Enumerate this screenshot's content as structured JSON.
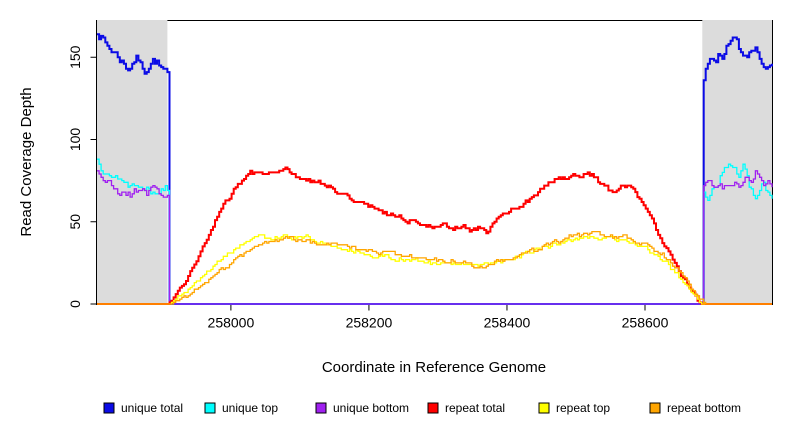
{
  "chart_data": {
    "type": "line",
    "title": "",
    "xlabel": "Coordinate in Reference Genome",
    "ylabel": "Read Coverage Depth",
    "xlim": [
      257806,
      258784
    ],
    "ylim": [
      0,
      172.3
    ],
    "xticks": [
      258000,
      258200,
      258400,
      258600
    ],
    "yticks": [
      0,
      50,
      100,
      150
    ],
    "grid": false,
    "legend_position": "bottom",
    "plot_background": "#ffffff",
    "shaded_regions": [
      {
        "label": "flank-left",
        "x0": 257806,
        "x1": 257908,
        "color": "#DCDCDC"
      },
      {
        "label": "flank-right",
        "x0": 258683,
        "x1": 258784,
        "color": "#DCDCDC"
      }
    ],
    "series": [
      {
        "name": "unique total",
        "color": "#0B0BE6",
        "width": 2,
        "noise": 2.3,
        "seed": 7,
        "points": [
          [
            257806,
            166
          ],
          [
            257814,
            161
          ],
          [
            257822,
            156
          ],
          [
            257830,
            153
          ],
          [
            257838,
            150
          ],
          [
            257846,
            145
          ],
          [
            257852,
            143
          ],
          [
            257858,
            147
          ],
          [
            257864,
            150
          ],
          [
            257870,
            144
          ],
          [
            257876,
            142
          ],
          [
            257882,
            146
          ],
          [
            257888,
            149
          ],
          [
            257894,
            146
          ],
          [
            257900,
            142
          ],
          [
            257906,
            140
          ],
          [
            257909,
            139
          ],
          [
            257910,
            0
          ],
          [
            258683,
            0
          ],
          [
            258684,
            135
          ],
          [
            258690,
            146
          ],
          [
            258696,
            150
          ],
          [
            258702,
            149
          ],
          [
            258708,
            153
          ],
          [
            258714,
            151
          ],
          [
            258720,
            156
          ],
          [
            258726,
            160
          ],
          [
            258731,
            164
          ],
          [
            258736,
            157
          ],
          [
            258741,
            151
          ],
          [
            258746,
            149
          ],
          [
            258752,
            154
          ],
          [
            258758,
            157
          ],
          [
            258764,
            153
          ],
          [
            258770,
            147
          ],
          [
            258776,
            142
          ],
          [
            258784,
            143
          ]
        ]
      },
      {
        "name": "unique top",
        "color": "#00FFFF",
        "width": 1.3,
        "noise": 2.6,
        "seed": 13,
        "points": [
          [
            257806,
            88
          ],
          [
            257814,
            82
          ],
          [
            257822,
            84
          ],
          [
            257830,
            78
          ],
          [
            257838,
            74
          ],
          [
            257846,
            76
          ],
          [
            257852,
            71
          ],
          [
            257860,
            74
          ],
          [
            257868,
            70
          ],
          [
            257876,
            72
          ],
          [
            257884,
            69
          ],
          [
            257892,
            71
          ],
          [
            257900,
            69
          ],
          [
            257906,
            71
          ],
          [
            257909,
            70
          ],
          [
            257910,
            0
          ],
          [
            258683,
            0
          ],
          [
            258684,
            70
          ],
          [
            258690,
            66
          ],
          [
            258698,
            70
          ],
          [
            258706,
            76
          ],
          [
            258714,
            81
          ],
          [
            258722,
            85
          ],
          [
            258730,
            82
          ],
          [
            258736,
            79
          ],
          [
            258742,
            83
          ],
          [
            258748,
            75
          ],
          [
            258754,
            68
          ],
          [
            258760,
            64
          ],
          [
            258766,
            68
          ],
          [
            258772,
            72
          ],
          [
            258778,
            68
          ],
          [
            258784,
            64
          ]
        ]
      },
      {
        "name": "unique bottom",
        "color": "#A020F0",
        "width": 1.3,
        "noise": 2.2,
        "seed": 21,
        "points": [
          [
            257806,
            81
          ],
          [
            257814,
            77
          ],
          [
            257822,
            73
          ],
          [
            257830,
            70
          ],
          [
            257838,
            67
          ],
          [
            257846,
            69
          ],
          [
            257854,
            66
          ],
          [
            257862,
            69
          ],
          [
            257870,
            71
          ],
          [
            257878,
            68
          ],
          [
            257886,
            70
          ],
          [
            257894,
            68
          ],
          [
            257902,
            66
          ],
          [
            257909,
            66
          ],
          [
            257910,
            0
          ],
          [
            258683,
            0
          ],
          [
            258684,
            72
          ],
          [
            258692,
            75
          ],
          [
            258700,
            71
          ],
          [
            258708,
            74
          ],
          [
            258716,
            70
          ],
          [
            258724,
            72
          ],
          [
            258732,
            76
          ],
          [
            258740,
            73
          ],
          [
            258748,
            78
          ],
          [
            258754,
            75
          ],
          [
            258760,
            81
          ],
          [
            258766,
            77
          ],
          [
            258772,
            73
          ],
          [
            258778,
            74
          ],
          [
            258784,
            70
          ]
        ]
      },
      {
        "name": "repeat total",
        "color": "#FF0000",
        "width": 2,
        "noise": 1.3,
        "seed": 3,
        "points": [
          [
            257806,
            0
          ],
          [
            257910,
            0
          ],
          [
            257922,
            6
          ],
          [
            257935,
            15
          ],
          [
            257948,
            25
          ],
          [
            257960,
            34
          ],
          [
            257972,
            45
          ],
          [
            257984,
            55
          ],
          [
            257996,
            64
          ],
          [
            258008,
            72
          ],
          [
            258018,
            76
          ],
          [
            258028,
            80
          ],
          [
            258042,
            79
          ],
          [
            258056,
            80
          ],
          [
            258068,
            78
          ],
          [
            258080,
            81
          ],
          [
            258092,
            77
          ],
          [
            258104,
            76
          ],
          [
            258118,
            75
          ],
          [
            258130,
            74
          ],
          [
            258145,
            71
          ],
          [
            258160,
            67
          ],
          [
            258175,
            64
          ],
          [
            258190,
            61
          ],
          [
            258205,
            59
          ],
          [
            258220,
            56
          ],
          [
            258235,
            54
          ],
          [
            258250,
            52
          ],
          [
            258265,
            50
          ],
          [
            258280,
            49
          ],
          [
            258295,
            48
          ],
          [
            258310,
            47
          ],
          [
            258322,
            46
          ],
          [
            258334,
            48
          ],
          [
            258346,
            45
          ],
          [
            258358,
            46
          ],
          [
            258366,
            47
          ],
          [
            258372,
            43
          ],
          [
            258380,
            49
          ],
          [
            258392,
            53
          ],
          [
            258404,
            56
          ],
          [
            258416,
            59
          ],
          [
            258428,
            62
          ],
          [
            258440,
            66
          ],
          [
            258452,
            70
          ],
          [
            258464,
            74
          ],
          [
            258476,
            77
          ],
          [
            258488,
            75
          ],
          [
            258500,
            78
          ],
          [
            258512,
            79
          ],
          [
            258524,
            78
          ],
          [
            258536,
            73
          ],
          [
            258548,
            69
          ],
          [
            258558,
            67
          ],
          [
            258568,
            72
          ],
          [
            258576,
            73
          ],
          [
            258586,
            68
          ],
          [
            258596,
            61
          ],
          [
            258606,
            53
          ],
          [
            258616,
            45
          ],
          [
            258626,
            37
          ],
          [
            258636,
            30
          ],
          [
            258646,
            23
          ],
          [
            258656,
            16
          ],
          [
            258666,
            9
          ],
          [
            258676,
            4
          ],
          [
            258683,
            0
          ],
          [
            258784,
            0
          ]
        ]
      },
      {
        "name": "repeat top",
        "color": "#FFFF00",
        "width": 1.3,
        "noise": 1.1,
        "seed": 5,
        "points": [
          [
            257806,
            0
          ],
          [
            257910,
            0
          ],
          [
            257928,
            5
          ],
          [
            257946,
            12
          ],
          [
            257964,
            19
          ],
          [
            257982,
            26
          ],
          [
            258000,
            32
          ],
          [
            258015,
            36
          ],
          [
            258030,
            39
          ],
          [
            258045,
            41
          ],
          [
            258060,
            40
          ],
          [
            258075,
            42
          ],
          [
            258090,
            40
          ],
          [
            258105,
            41
          ],
          [
            258120,
            39
          ],
          [
            258135,
            37
          ],
          [
            258150,
            35
          ],
          [
            258165,
            33
          ],
          [
            258180,
            32
          ],
          [
            258195,
            30
          ],
          [
            258215,
            29
          ],
          [
            258235,
            28
          ],
          [
            258255,
            27
          ],
          [
            258275,
            26
          ],
          [
            258295,
            25
          ],
          [
            258315,
            24
          ],
          [
            258335,
            25
          ],
          [
            258355,
            24
          ],
          [
            258375,
            25
          ],
          [
            258395,
            27
          ],
          [
            258415,
            29
          ],
          [
            258435,
            32
          ],
          [
            258455,
            35
          ],
          [
            258475,
            37
          ],
          [
            258495,
            39
          ],
          [
            258515,
            41
          ],
          [
            258535,
            40
          ],
          [
            258555,
            40
          ],
          [
            258575,
            38
          ],
          [
            258595,
            35
          ],
          [
            258615,
            30
          ],
          [
            258635,
            23
          ],
          [
            258650,
            16
          ],
          [
            258665,
            9
          ],
          [
            258676,
            4
          ],
          [
            258683,
            0
          ],
          [
            258784,
            0
          ]
        ]
      },
      {
        "name": "repeat bottom",
        "color": "#FFA500",
        "width": 1.3,
        "noise": 1.1,
        "seed": 9,
        "points": [
          [
            257806,
            0
          ],
          [
            257910,
            0
          ],
          [
            257932,
            4
          ],
          [
            257954,
            10
          ],
          [
            257976,
            17
          ],
          [
            257998,
            24
          ],
          [
            258018,
            30
          ],
          [
            258038,
            35
          ],
          [
            258058,
            38
          ],
          [
            258078,
            40
          ],
          [
            258098,
            39
          ],
          [
            258118,
            38
          ],
          [
            258138,
            37
          ],
          [
            258158,
            35
          ],
          [
            258178,
            34
          ],
          [
            258198,
            32
          ],
          [
            258218,
            31
          ],
          [
            258238,
            30
          ],
          [
            258258,
            29
          ],
          [
            258278,
            28
          ],
          [
            258298,
            27
          ],
          [
            258318,
            26
          ],
          [
            258338,
            25
          ],
          [
            258352,
            23
          ],
          [
            258366,
            22
          ],
          [
            258380,
            25
          ],
          [
            258394,
            27
          ],
          [
            258410,
            28
          ],
          [
            258426,
            31
          ],
          [
            258442,
            33
          ],
          [
            258458,
            36
          ],
          [
            258474,
            38
          ],
          [
            258490,
            41
          ],
          [
            258506,
            42
          ],
          [
            258522,
            43
          ],
          [
            258538,
            42
          ],
          [
            258554,
            41
          ],
          [
            258570,
            40
          ],
          [
            258586,
            38
          ],
          [
            258602,
            36
          ],
          [
            258618,
            32
          ],
          [
            258634,
            27
          ],
          [
            258648,
            21
          ],
          [
            258660,
            14
          ],
          [
            258670,
            8
          ],
          [
            258680,
            3
          ],
          [
            258686,
            0
          ],
          [
            258784,
            0
          ]
        ]
      }
    ]
  },
  "legend": {
    "items": [
      {
        "label": "unique total",
        "color": "#0B0BE6"
      },
      {
        "label": "unique top",
        "color": "#00FFFF"
      },
      {
        "label": "unique bottom",
        "color": "#A020F0"
      },
      {
        "label": "repeat total",
        "color": "#FF0000"
      },
      {
        "label": "repeat top",
        "color": "#FFFF00"
      },
      {
        "label": "repeat bottom",
        "color": "#FFA500"
      }
    ]
  }
}
